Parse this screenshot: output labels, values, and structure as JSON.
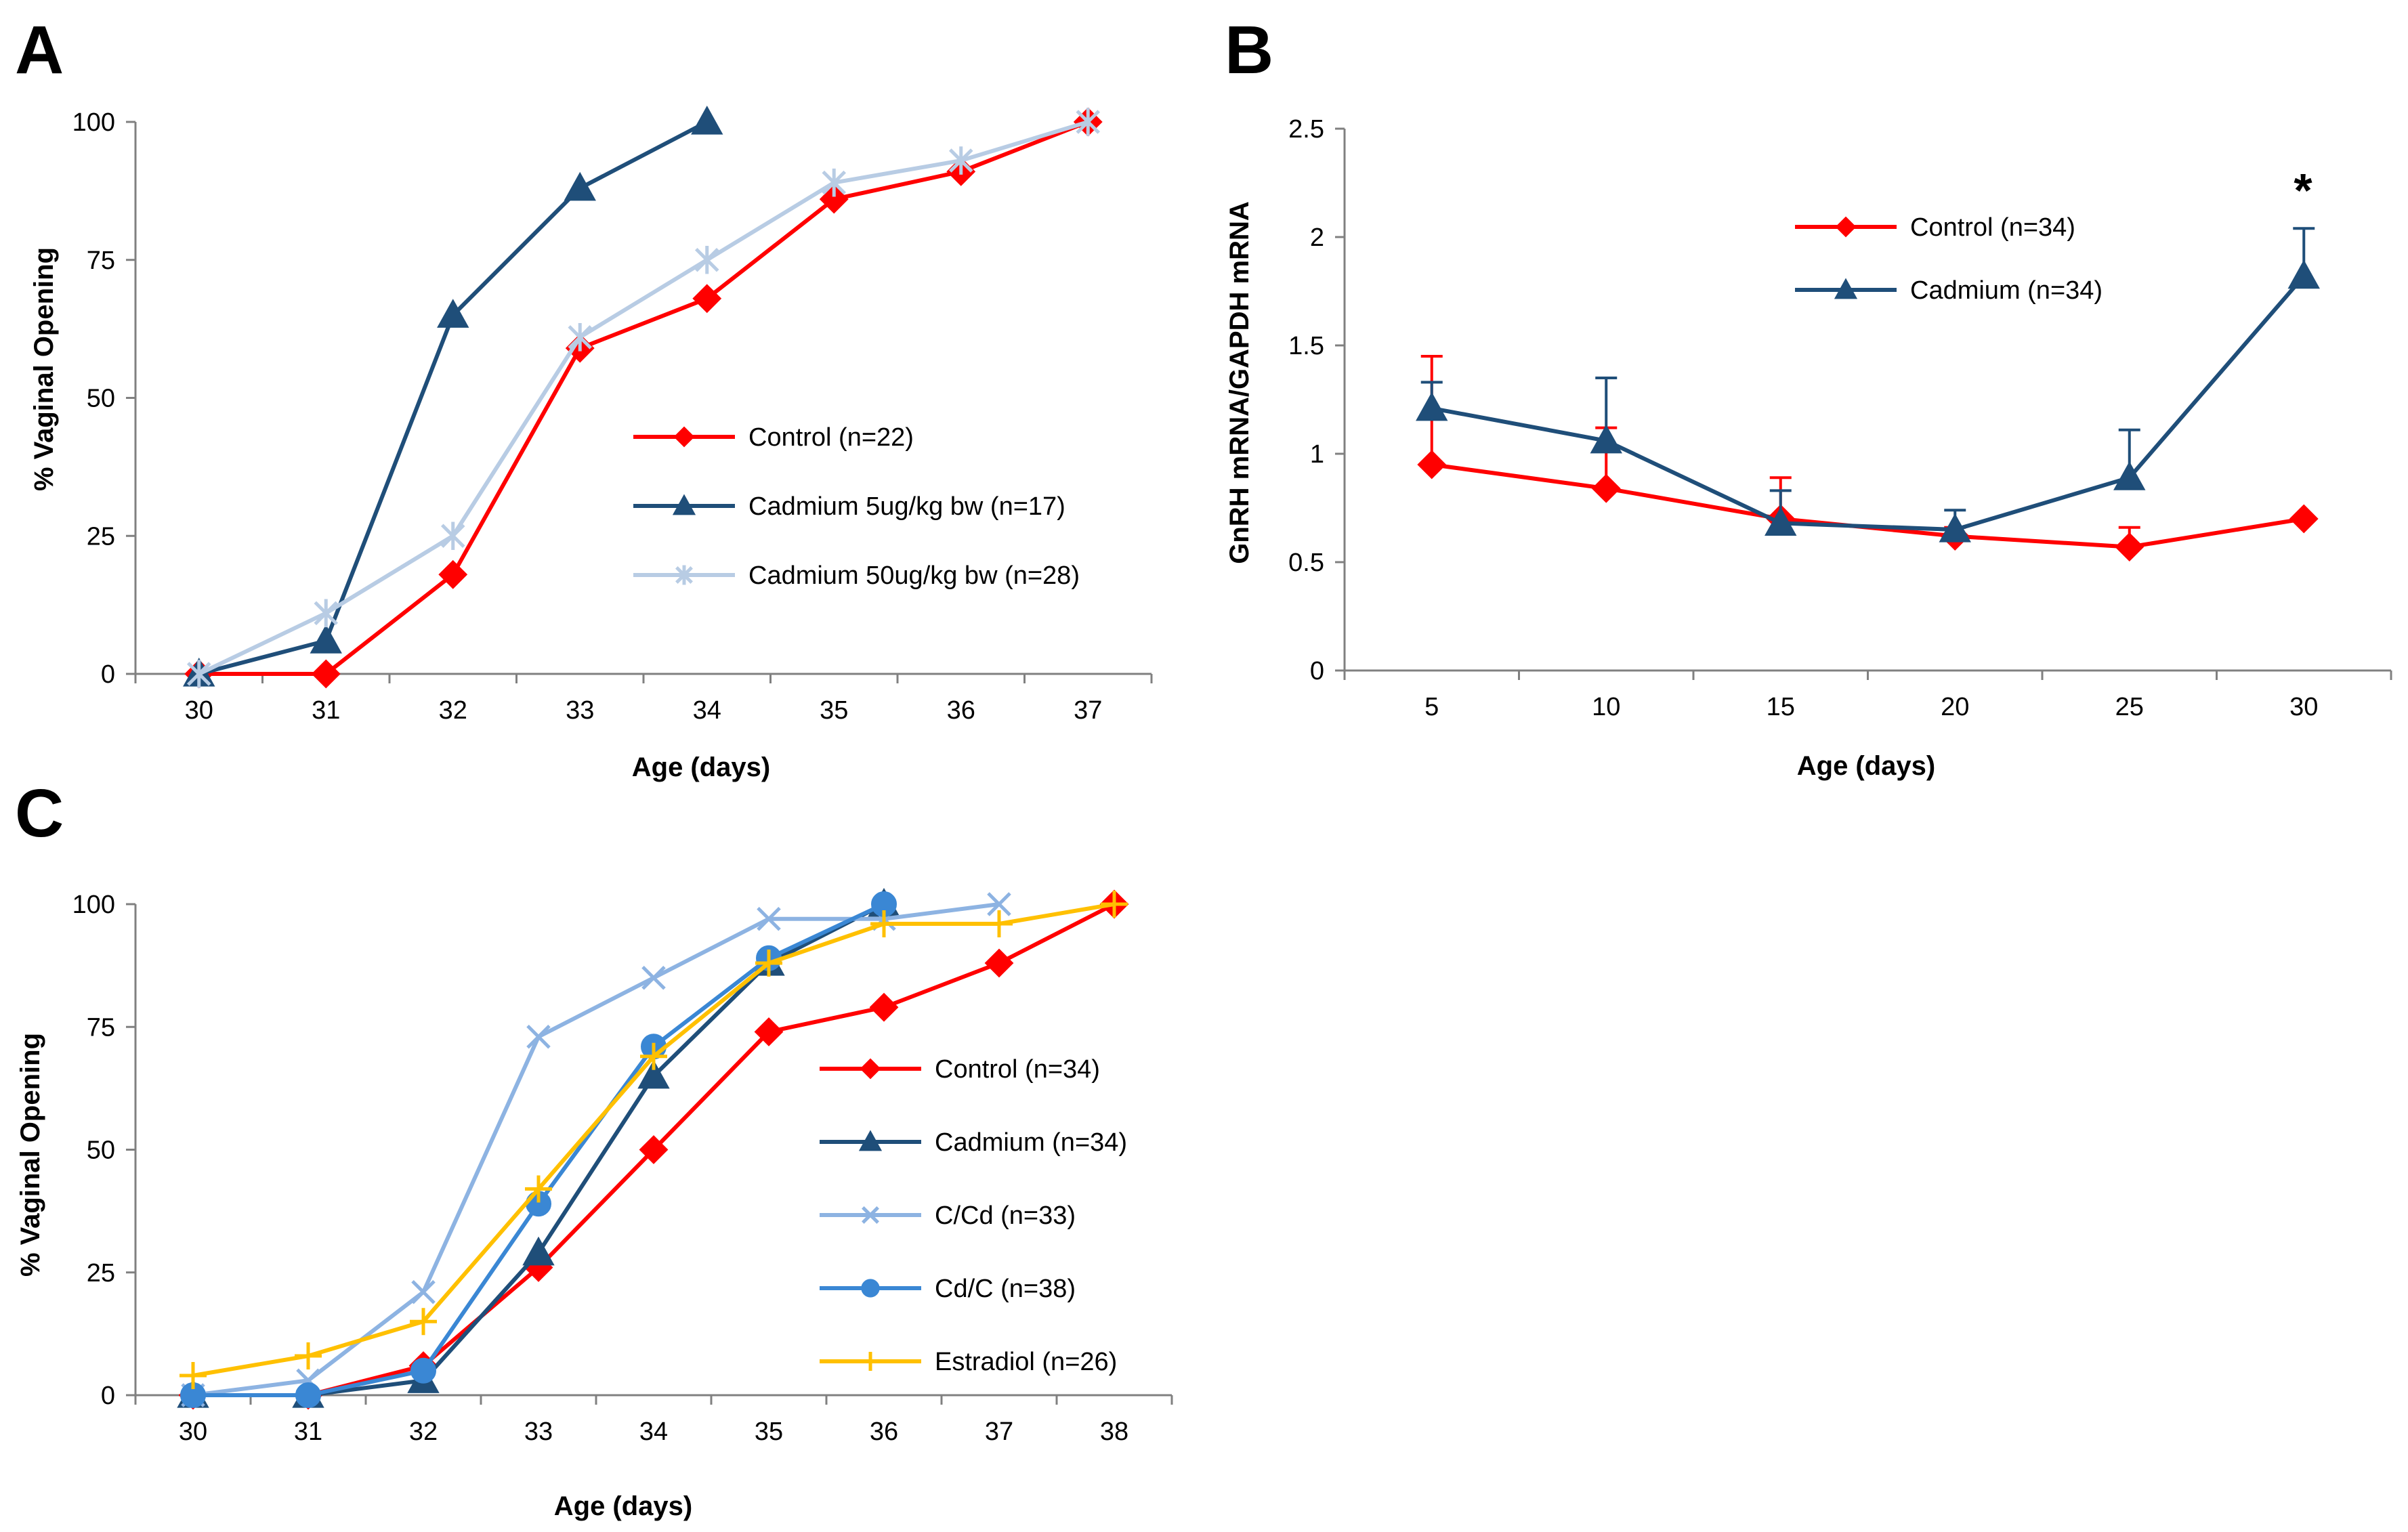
{
  "chart_data": [
    {
      "panel": "A",
      "type": "line",
      "xlabel": "Age (days)",
      "ylabel": "% Vaginal Opening",
      "x": [
        30,
        31,
        32,
        33,
        34,
        35,
        36,
        37
      ],
      "xlim": [
        30,
        37
      ],
      "ylim": [
        0,
        100
      ],
      "yticks": [
        0,
        25,
        50,
        75,
        100
      ],
      "grid": false,
      "legend_position": "center-right",
      "series": [
        {
          "name": "Control (n=22)",
          "color": "#ff0000",
          "marker": "diamond",
          "x": [
            30,
            31,
            32,
            33,
            34,
            35,
            36,
            37
          ],
          "values": [
            0,
            0,
            18,
            59,
            68,
            86,
            91,
            100
          ]
        },
        {
          "name": "Cadmium 5ug/kg bw (n=17)",
          "color": "#1f4e79",
          "marker": "triangle",
          "x": [
            30,
            31,
            32,
            33,
            34
          ],
          "values": [
            0,
            6,
            65,
            88,
            100
          ]
        },
        {
          "name": "Cadmium 50ug/kg bw (n=28)",
          "color": "#b8cce4",
          "marker": "star",
          "x": [
            30,
            31,
            32,
            33,
            34,
            35,
            36,
            37
          ],
          "values": [
            0,
            11,
            25,
            61,
            75,
            89,
            93,
            100
          ]
        }
      ]
    },
    {
      "panel": "B",
      "type": "line",
      "xlabel": "Age (days)",
      "ylabel": "GnRH mRNA/GAPDH mRNA",
      "x": [
        5,
        10,
        15,
        20,
        25,
        30
      ],
      "ylim": [
        0,
        2.5
      ],
      "yticks": [
        0,
        0.5,
        1,
        1.5,
        2,
        2.5
      ],
      "grid": false,
      "legend_position": "top-center",
      "annotation": "*",
      "series": [
        {
          "name": "Control (n=34)",
          "color": "#ff0000",
          "marker": "diamond",
          "values": [
            0.95,
            0.84,
            0.7,
            0.62,
            0.57,
            0.7
          ],
          "error": [
            0.5,
            0.28,
            0.19,
            0.04,
            0.09,
            0.0
          ]
        },
        {
          "name": "Cadmium (n=34)",
          "color": "#1f4e79",
          "marker": "triangle",
          "values": [
            1.21,
            1.06,
            0.68,
            0.65,
            0.89,
            1.82
          ],
          "error": [
            0.12,
            0.29,
            0.15,
            0.09,
            0.22,
            0.22
          ]
        }
      ]
    },
    {
      "panel": "C",
      "type": "line",
      "xlabel": "Age (days)",
      "ylabel": "% Vaginal Opening",
      "x": [
        30,
        31,
        32,
        33,
        34,
        35,
        36,
        37,
        38
      ],
      "xlim": [
        30,
        38
      ],
      "ylim": [
        0,
        100
      ],
      "yticks": [
        0,
        25,
        50,
        75,
        100
      ],
      "grid": false,
      "legend_position": "center-right",
      "series": [
        {
          "name": "Control (n=34)",
          "color": "#ff0000",
          "marker": "diamond",
          "x": [
            30,
            31,
            32,
            33,
            34,
            35,
            36,
            37,
            38
          ],
          "values": [
            0,
            0,
            6,
            26,
            50,
            74,
            79,
            88,
            100
          ]
        },
        {
          "name": "Cadmium (n=34)",
          "color": "#1f4e79",
          "marker": "triangle",
          "x": [
            30,
            31,
            32,
            33,
            34,
            35,
            36
          ],
          "values": [
            0,
            0,
            3,
            29,
            65,
            88,
            100
          ]
        },
        {
          "name": "C/Cd (n=33)",
          "color": "#8db3e2",
          "marker": "x",
          "x": [
            30,
            31,
            32,
            33,
            34,
            35,
            36,
            37
          ],
          "values": [
            0,
            3,
            21,
            73,
            85,
            97,
            97,
            100
          ]
        },
        {
          "name": "Cd/C (n=38)",
          "color": "#3a87d4",
          "marker": "circle",
          "x": [
            30,
            31,
            32,
            33,
            34,
            35,
            36
          ],
          "values": [
            0,
            0,
            5,
            39,
            71,
            89,
            100
          ]
        },
        {
          "name": "Estradiol (n=26)",
          "color": "#ffc000",
          "marker": "plus",
          "x": [
            30,
            31,
            32,
            33,
            34,
            35,
            36,
            37,
            38
          ],
          "values": [
            4,
            8,
            15,
            42,
            69,
            88,
            96,
            96,
            100
          ]
        }
      ]
    }
  ],
  "panel_labels": [
    "A",
    "B",
    "C"
  ]
}
